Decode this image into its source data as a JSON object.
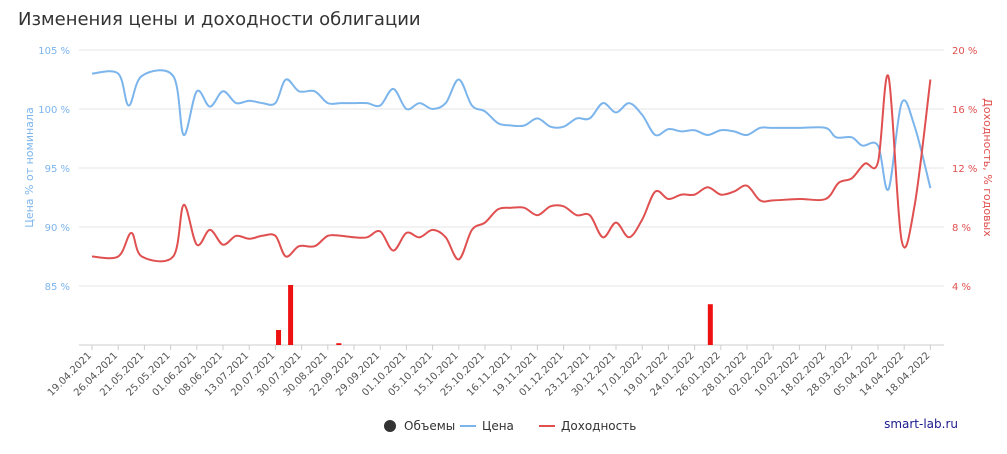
{
  "chart_data": {
    "type": "line",
    "title": "Изменения цены и доходности облигации",
    "y_left": {
      "label": "Цена % от номинала",
      "range": [
        80,
        105
      ],
      "ticks": [
        "85 %",
        "90 %",
        "95 %",
        "100 %",
        "105 %"
      ],
      "tick_values": [
        85,
        90,
        95,
        100,
        105
      ]
    },
    "y_right": {
      "label": "Доходность, % годовых",
      "range": [
        0,
        20
      ],
      "ticks": [
        "4 %",
        "8 %",
        "12 %",
        "16 %",
        "20 %"
      ],
      "tick_values": [
        4,
        8,
        12,
        16,
        20
      ]
    },
    "categories": [
      "19.04.2021",
      "26.04.2021",
      "21.05.2021",
      "25.05.2021",
      "01.06.2021",
      "08.06.2021",
      "13.07.2021",
      "20.07.2021",
      "30.07.2021",
      "30.08.2021",
      "22.09.2021",
      "29.09.2021",
      "01.10.2021",
      "05.10.2021",
      "15.10.2021",
      "25.10.2021",
      "16.11.2021",
      "19.11.2021",
      "01.12.2021",
      "23.12.2021",
      "30.12.2021",
      "17.01.2022",
      "19.01.2022",
      "24.01.2022",
      "26.01.2022",
      "28.01.2022",
      "02.02.2022",
      "10.02.2022",
      "18.02.2022",
      "28.03.2022",
      "05.04.2022",
      "14.04.2022",
      "18.04.2022"
    ],
    "grid": true,
    "legend_position": "bottom-center",
    "series": [
      {
        "name": "Цена",
        "color": "#7cb5ec",
        "axis": "left",
        "points": [
          [
            0,
            103
          ],
          [
            1,
            103
          ],
          [
            1.4,
            100.3
          ],
          [
            1.9,
            102.8
          ],
          [
            3.1,
            102.8
          ],
          [
            3.5,
            97.8
          ],
          [
            4,
            101.5
          ],
          [
            4.5,
            100.2
          ],
          [
            5,
            101.5
          ],
          [
            5.5,
            100.5
          ],
          [
            6,
            100.7
          ],
          [
            6.5,
            100.5
          ],
          [
            7,
            100.5
          ],
          [
            7.4,
            102.5
          ],
          [
            7.9,
            101.5
          ],
          [
            8.5,
            101.5
          ],
          [
            9,
            100.5
          ],
          [
            9.5,
            100.5
          ],
          [
            10,
            100.5
          ],
          [
            10.5,
            100.5
          ],
          [
            11,
            100.3
          ],
          [
            11.5,
            101.7
          ],
          [
            12,
            100
          ],
          [
            12.5,
            100.5
          ],
          [
            13,
            100
          ],
          [
            13.5,
            100.5
          ],
          [
            14,
            102.5
          ],
          [
            14.5,
            100.3
          ],
          [
            15,
            99.8
          ],
          [
            15.5,
            98.8
          ],
          [
            16,
            98.6
          ],
          [
            16.5,
            98.6
          ],
          [
            17,
            99.2
          ],
          [
            17.5,
            98.5
          ],
          [
            18,
            98.5
          ],
          [
            18.5,
            99.2
          ],
          [
            19,
            99.2
          ],
          [
            19.5,
            100.5
          ],
          [
            20,
            99.7
          ],
          [
            20.5,
            100.5
          ],
          [
            21,
            99.5
          ],
          [
            21.5,
            97.8
          ],
          [
            22,
            98.3
          ],
          [
            22.5,
            98.1
          ],
          [
            23,
            98.2
          ],
          [
            23.5,
            97.8
          ],
          [
            24,
            98.2
          ],
          [
            24.5,
            98.1
          ],
          [
            25,
            97.8
          ],
          [
            25.5,
            98.4
          ],
          [
            26,
            98.4
          ],
          [
            27,
            98.4
          ],
          [
            28,
            98.4
          ],
          [
            28.4,
            97.6
          ],
          [
            29,
            97.6
          ],
          [
            29.4,
            96.9
          ],
          [
            30,
            96.9
          ],
          [
            30.4,
            93.2
          ],
          [
            30.9,
            100.5
          ],
          [
            31.4,
            98.5
          ],
          [
            32,
            93.3
          ]
        ]
      },
      {
        "name": "Доходность",
        "color": "#e05050",
        "axis": "right",
        "points": [
          [
            0,
            6
          ],
          [
            1,
            6
          ],
          [
            1.5,
            7.6
          ],
          [
            1.9,
            6
          ],
          [
            3.1,
            6
          ],
          [
            3.5,
            9.5
          ],
          [
            4,
            6.8
          ],
          [
            4.5,
            7.8
          ],
          [
            5,
            6.8
          ],
          [
            5.5,
            7.4
          ],
          [
            6,
            7.2
          ],
          [
            6.5,
            7.4
          ],
          [
            7,
            7.4
          ],
          [
            7.4,
            6
          ],
          [
            7.9,
            6.7
          ],
          [
            8.5,
            6.7
          ],
          [
            9,
            7.4
          ],
          [
            9.5,
            7.4
          ],
          [
            10,
            7.3
          ],
          [
            10.5,
            7.3
          ],
          [
            11,
            7.7
          ],
          [
            11.5,
            6.4
          ],
          [
            12,
            7.6
          ],
          [
            12.5,
            7.3
          ],
          [
            13,
            7.8
          ],
          [
            13.5,
            7.3
          ],
          [
            14,
            5.8
          ],
          [
            14.5,
            7.8
          ],
          [
            15,
            8.3
          ],
          [
            15.5,
            9.2
          ],
          [
            16,
            9.3
          ],
          [
            16.5,
            9.3
          ],
          [
            17,
            8.8
          ],
          [
            17.5,
            9.4
          ],
          [
            18,
            9.4
          ],
          [
            18.5,
            8.8
          ],
          [
            19,
            8.8
          ],
          [
            19.5,
            7.3
          ],
          [
            20,
            8.3
          ],
          [
            20.5,
            7.3
          ],
          [
            21,
            8.5
          ],
          [
            21.5,
            10.4
          ],
          [
            22,
            9.9
          ],
          [
            22.5,
            10.2
          ],
          [
            23,
            10.2
          ],
          [
            23.5,
            10.7
          ],
          [
            24,
            10.2
          ],
          [
            24.5,
            10.4
          ],
          [
            25,
            10.8
          ],
          [
            25.5,
            9.8
          ],
          [
            26,
            9.8
          ],
          [
            27,
            9.9
          ],
          [
            28,
            9.9
          ],
          [
            28.5,
            11
          ],
          [
            29,
            11.3
          ],
          [
            29.5,
            12.3
          ],
          [
            30,
            12.4
          ],
          [
            30.4,
            18.2
          ],
          [
            30.9,
            7.1
          ],
          [
            31.4,
            9.5
          ],
          [
            32,
            18
          ]
        ]
      },
      {
        "name": "Объемы",
        "type": "bar",
        "color": "#ee1111",
        "points": [
          [
            7.12,
            0.25
          ],
          [
            7.58,
            1
          ],
          [
            9.42,
            0.03
          ],
          [
            23.6,
            0.68
          ]
        ]
      }
    ],
    "legend": [
      {
        "label": "Объемы",
        "color": "#333333",
        "symbol": "circle"
      },
      {
        "label": "Цена",
        "color": "#7cb5ec",
        "symbol": "line"
      },
      {
        "label": "Доходность",
        "color": "#e05050",
        "symbol": "line"
      }
    ],
    "credit": "smart-lab.ru"
  }
}
